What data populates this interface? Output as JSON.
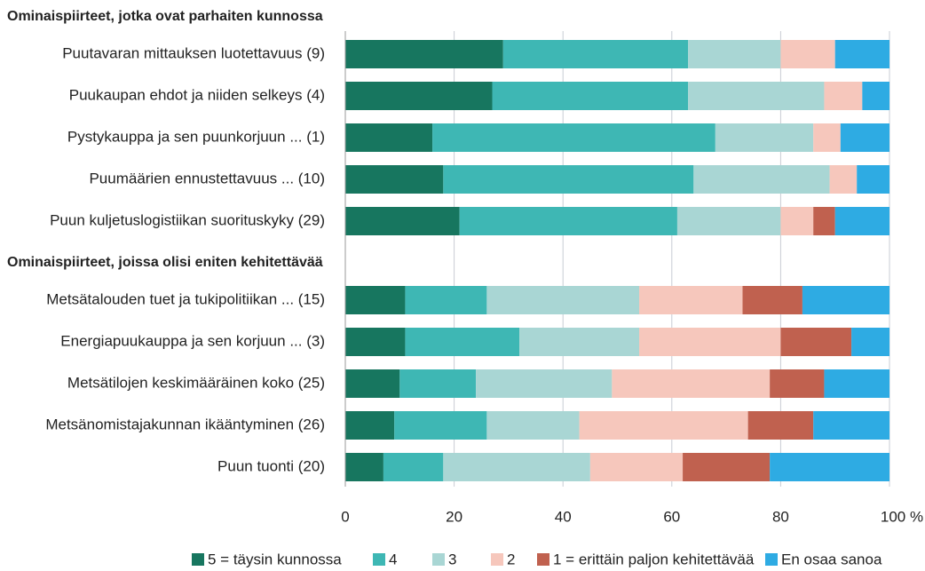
{
  "chart_data": {
    "type": "stacked_bar_horizontal",
    "groups": [
      {
        "title": "Ominaispiirteet, jotka ovat parhaiten kunnossa",
        "categories": [
          "Puutavaran mittauksen luotettavuus (9)",
          "Puukaupan ehdot ja niiden selkeys (4)",
          "Pystykauppa ja sen puunkorjuun ... (1)",
          "Puumäärien ennustettavuus ... (10)",
          "Puun kuljetuslogistiikan suorituskyky (29)"
        ]
      },
      {
        "title": "Ominaispiirteet, joissa olisi eniten kehitettävää",
        "categories": [
          "Metsätalouden tuet ja tukipolitiikan ... (15)",
          "Energiapuukauppa ja sen korjuun ... (3)",
          "Metsätilojen keskimääräinen koko (25)",
          "Metsänomistajakunnan ikääntyminen (26)",
          "Puun tuonti (20)"
        ]
      }
    ],
    "series": [
      {
        "name": "5 = täysin kunnossa",
        "color": "#17765f",
        "values": [
          29,
          27,
          16,
          18,
          21,
          11,
          11,
          10,
          9,
          7
        ]
      },
      {
        "name": "4",
        "color": "#3eb7b4",
        "values": [
          34,
          36,
          52,
          46,
          40,
          15,
          21,
          14,
          17,
          11
        ]
      },
      {
        "name": "3",
        "color": "#a9d6d4",
        "values": [
          17,
          25,
          18,
          25,
          19,
          28,
          22,
          25,
          17,
          27
        ]
      },
      {
        "name": "2",
        "color": "#f6c7bc",
        "values": [
          10,
          7,
          5,
          5,
          6,
          19,
          26,
          29,
          31,
          17
        ]
      },
      {
        "name": "1 = erittäin paljon kehitettävää",
        "color": "#c0614f",
        "values": [
          0,
          0,
          0,
          0,
          4,
          11,
          13,
          10,
          12,
          16
        ]
      },
      {
        "name": "En osaa sanoa",
        "color": "#2eabe3",
        "values": [
          10,
          5,
          9,
          6,
          10,
          16,
          7,
          12,
          14,
          22
        ]
      }
    ],
    "xlim": [
      0,
      100
    ],
    "xticks": [
      0,
      20,
      40,
      60,
      80,
      {
        "value": 100,
        "label": "100 %"
      }
    ],
    "grid": true
  }
}
